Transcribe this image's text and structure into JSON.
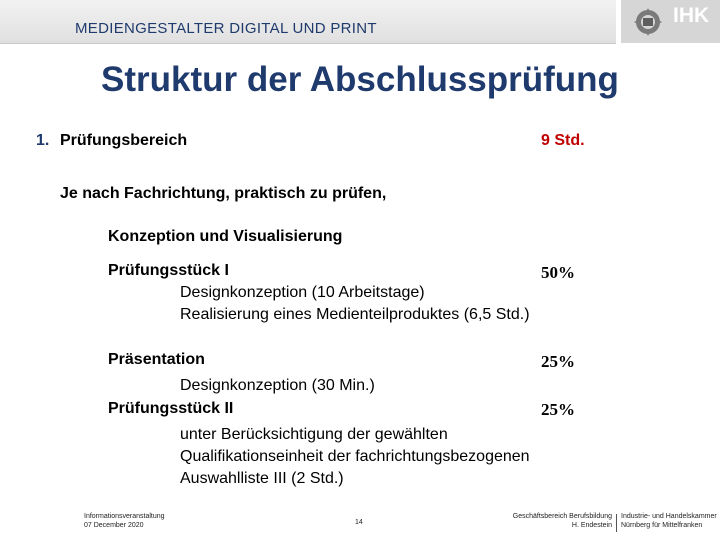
{
  "header": {
    "label": "MEDIENGESTALTER DIGITAL UND PRINT",
    "logo_text": "IHK",
    "logo_icon": "ihk-emblem-icon"
  },
  "slide": {
    "title": "Struktur der Abschlussprüfung",
    "section_number": "1.",
    "section_label": "Prüfungsbereich",
    "section_hours": "9 Std.",
    "intro": "Je nach Fachrichtung, praktisch zu prüfen,",
    "subheading": "Konzeption und Visualisierung",
    "items": [
      {
        "label": "Prüfungsstück I",
        "percent": "50%",
        "details": [
          "Designkonzeption (10 Arbeitstage)",
          "Realisierung eines Medienteilproduktes (6,5 Std.)"
        ]
      },
      {
        "label": "Präsentation",
        "percent": "25%",
        "details": [
          "Designkonzeption (30 Min.)"
        ]
      },
      {
        "label": "Prüfungsstück II",
        "percent": "25%",
        "details": [
          "unter Berücksichtigung der gewählten",
          "Qualifikationseinheit der fachrichtungsbezogenen",
          "Auswahlliste III (2 Std.)"
        ]
      }
    ]
  },
  "footer": {
    "left_line1": "Informationsveranstaltung",
    "left_line2": "07 December 2020",
    "page_number": "14",
    "right_a_line1": "Geschäftsbereich Berufsbildung",
    "right_a_line2": "H. Endestein",
    "right_b_line1": "Industrie- und Handelskammer",
    "right_b_line2": "Nürnberg für Mittelfranken"
  }
}
